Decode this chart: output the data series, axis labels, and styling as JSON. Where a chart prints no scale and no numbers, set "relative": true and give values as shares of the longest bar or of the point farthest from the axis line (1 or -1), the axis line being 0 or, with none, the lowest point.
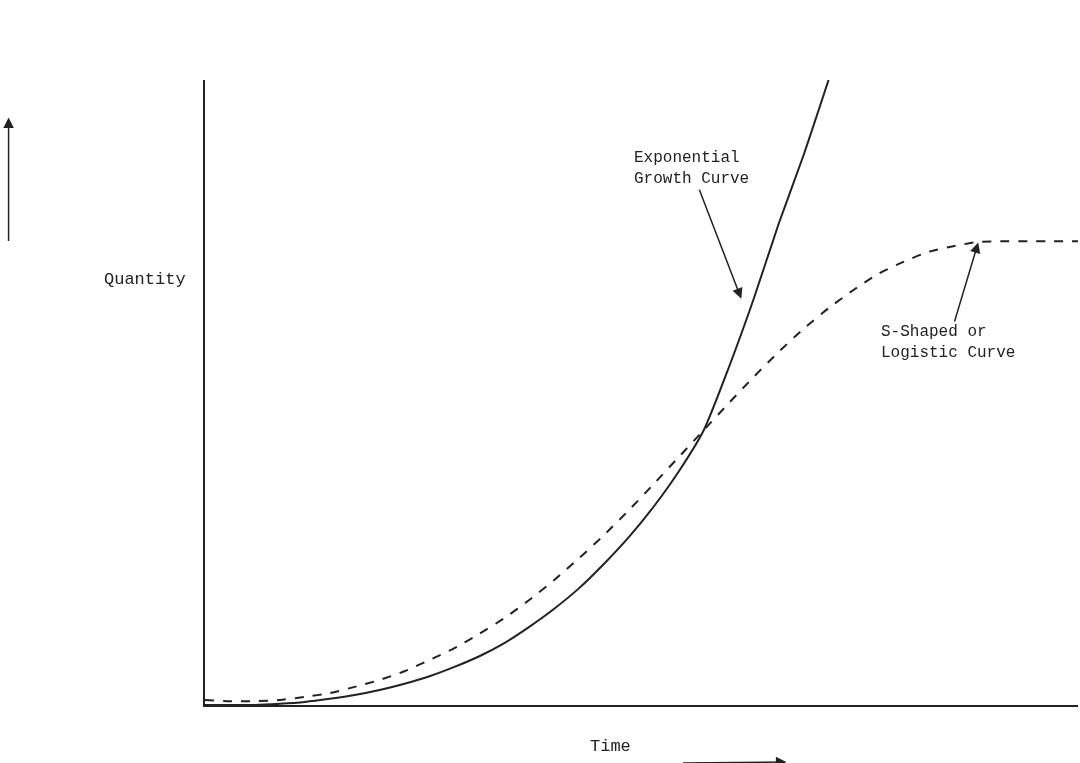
{
  "chart_data": {
    "type": "line",
    "relative": true,
    "xlabel": "Time",
    "ylabel": "Quantity",
    "categories": [
      null,
      null,
      null,
      null,
      null,
      null,
      null,
      null,
      null,
      null,
      null,
      null,
      null,
      null,
      null,
      null,
      null,
      null,
      null,
      null,
      null,
      null,
      null,
      null,
      null,
      null,
      null,
      null,
      null,
      null,
      null,
      null,
      null,
      null,
      null,
      null
    ],
    "series": [
      {
        "color": "#222222",
        "line_style": "solid",
        "values": [
          0,
          0,
          0,
          0.002,
          0.005,
          0.01,
          0.016,
          0.024,
          0.034,
          0.046,
          0.061,
          0.078,
          0.099,
          0.125,
          0.154,
          0.187,
          0.226,
          0.269,
          0.318,
          0.374,
          0.44,
          0.54,
          0.65,
          0.77,
          0.88,
          1.0,
          null,
          null,
          null,
          null,
          null,
          null,
          null,
          null,
          null,
          null
        ]
      },
      {
        "color": "#222222",
        "line_style": "dashed",
        "values": [
          0.008,
          0.006,
          0.006,
          0.008,
          0.013,
          0.019,
          0.029,
          0.04,
          0.054,
          0.072,
          0.091,
          0.114,
          0.139,
          0.168,
          0.2,
          0.235,
          0.272,
          0.312,
          0.354,
          0.397,
          0.44,
          0.483,
          0.525,
          0.565,
          0.602,
          0.635,
          0.664,
          0.69,
          0.709,
          0.725,
          0.734,
          0.741,
          0.742,
          0.742,
          0.742,
          0.742
        ]
      }
    ],
    "annotations": [
      "Exponential\nGrowth Curve",
      "S-Shaped or\nLogistic Curve"
    ]
  }
}
